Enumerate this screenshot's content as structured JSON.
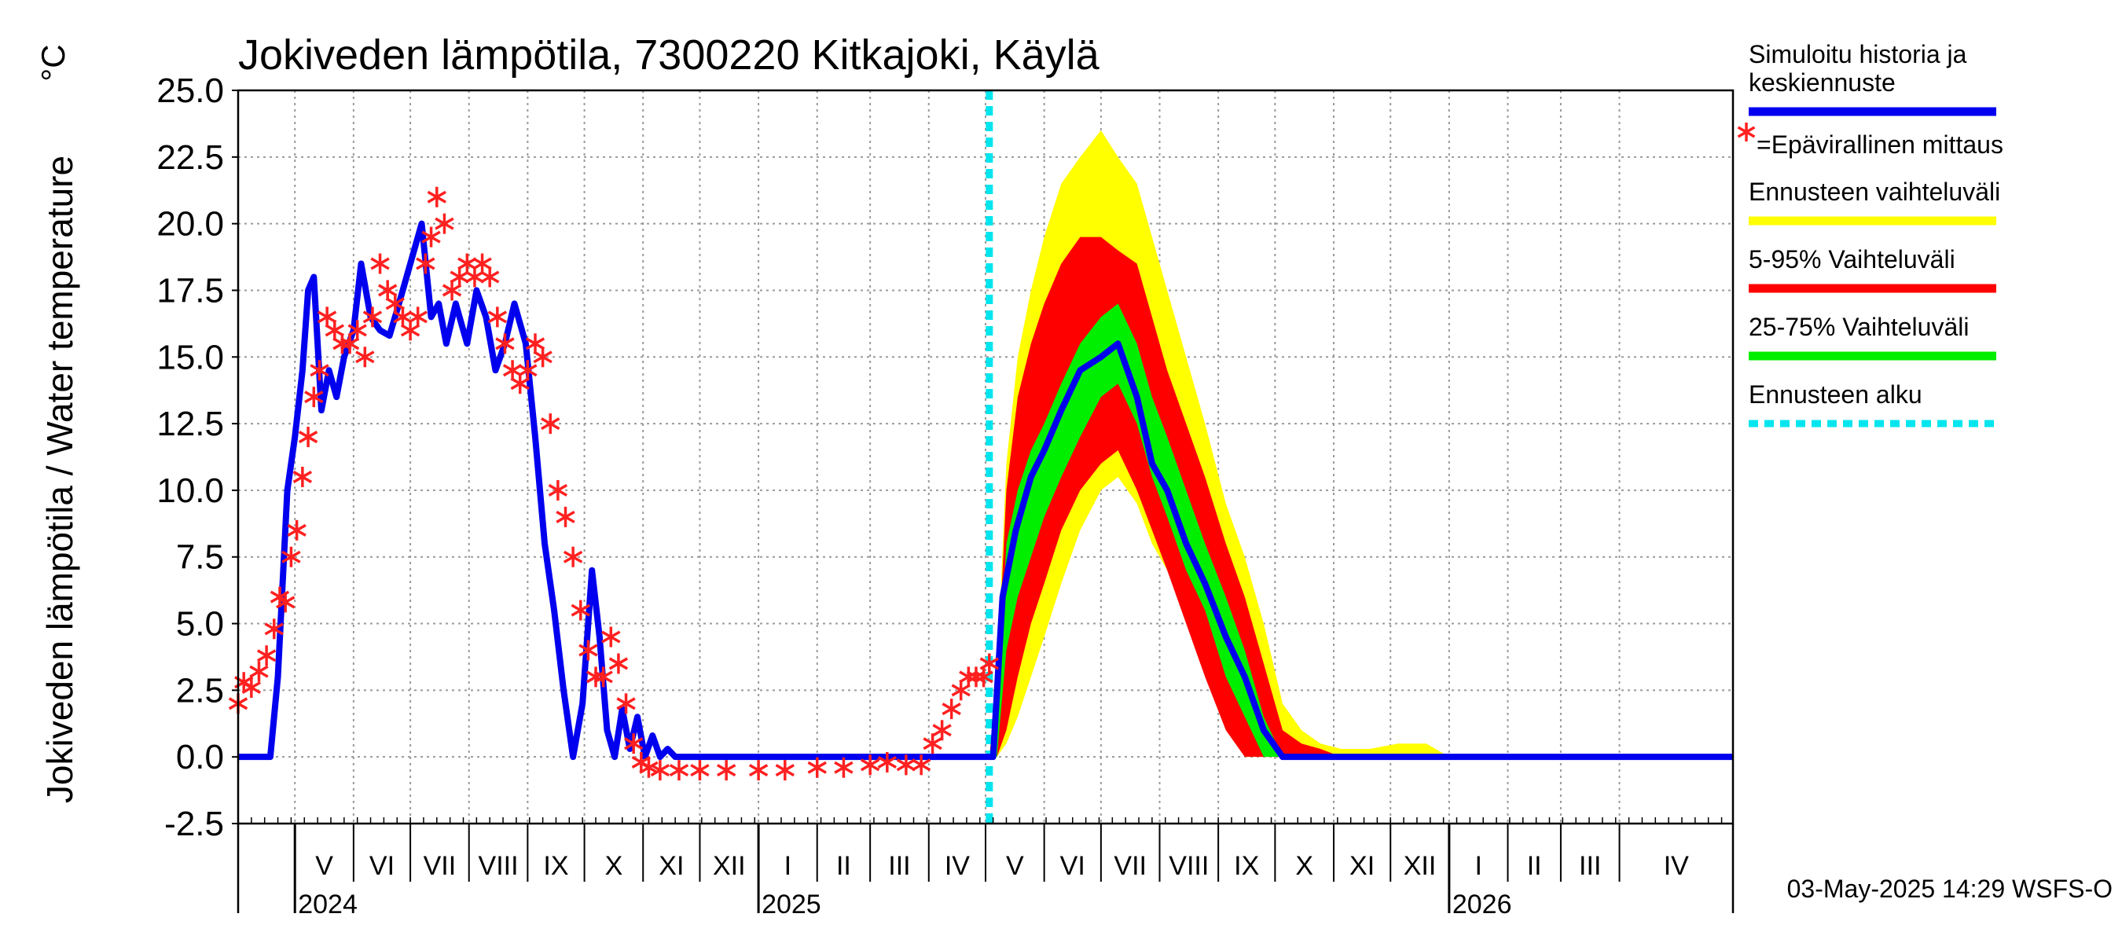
{
  "chart_data": {
    "type": "line",
    "title": "Jokiveden lämpötila, 7300220 Kitkajoki, Käylä",
    "ylabel": "Jokiveden lämpötila / Water temperature",
    "yunit": "°C",
    "ylim": [
      -2.5,
      25.0
    ],
    "yticks": [
      "25.0",
      "22.5",
      "20.0",
      "17.5",
      "15.0",
      "12.5",
      "10.0",
      "7.5",
      "5.0",
      "2.5",
      "0.0",
      "-2.5"
    ],
    "xlim": [
      "2024-04-01",
      "2026-05-31"
    ],
    "months": [
      {
        "label": "V",
        "start": "2024-05-01"
      },
      {
        "label": "VI",
        "start": "2024-06-01"
      },
      {
        "label": "VII",
        "start": "2024-07-01"
      },
      {
        "label": "VIII",
        "start": "2024-08-01"
      },
      {
        "label": "IX",
        "start": "2024-09-01"
      },
      {
        "label": "X",
        "start": "2024-10-01"
      },
      {
        "label": "XI",
        "start": "2024-11-01"
      },
      {
        "label": "XII",
        "start": "2024-12-01"
      },
      {
        "label": "I",
        "start": "2025-01-01"
      },
      {
        "label": "II",
        "start": "2025-02-01"
      },
      {
        "label": "III",
        "start": "2025-03-01"
      },
      {
        "label": "IV",
        "start": "2025-04-01"
      },
      {
        "label": "V",
        "start": "2025-05-01"
      },
      {
        "label": "VI",
        "start": "2025-06-01"
      },
      {
        "label": "VII",
        "start": "2025-07-01"
      },
      {
        "label": "VIII",
        "start": "2025-08-01"
      },
      {
        "label": "IX",
        "start": "2025-09-01"
      },
      {
        "label": "X",
        "start": "2025-10-01"
      },
      {
        "label": "XI",
        "start": "2025-11-01"
      },
      {
        "label": "XII",
        "start": "2025-12-01"
      },
      {
        "label": "I",
        "start": "2026-01-01"
      },
      {
        "label": "II",
        "start": "2026-02-01"
      },
      {
        "label": "III",
        "start": "2026-03-01"
      },
      {
        "label": "IV",
        "start": "2026-04-01"
      }
    ],
    "years": [
      {
        "label": "2024",
        "date": "2024-05-01"
      },
      {
        "label": "2025",
        "date": "2025-01-01"
      },
      {
        "label": "2026",
        "date": "2026-01-01"
      }
    ],
    "forecast_start": "2025-05-03",
    "colors": {
      "history": "#0000ee",
      "observation": "#ff2020",
      "range_full": "#ffff00",
      "range_5_95": "#ff0000",
      "range_25_75": "#00ee00",
      "forecast_start": "#00e5ee"
    },
    "series": [
      {
        "name": "Simuloitu historia ja keskiennuste",
        "kind": "line",
        "x": [
          "2024-04-01",
          "2024-04-18",
          "2024-04-22",
          "2024-04-27",
          "2024-05-01",
          "2024-05-05",
          "2024-05-08",
          "2024-05-11",
          "2024-05-15",
          "2024-05-19",
          "2024-05-23",
          "2024-05-27",
          "2024-06-01",
          "2024-06-05",
          "2024-06-10",
          "2024-06-15",
          "2024-06-20",
          "2024-06-25",
          "2024-07-01",
          "2024-07-07",
          "2024-07-12",
          "2024-07-16",
          "2024-07-20",
          "2024-07-25",
          "2024-07-31",
          "2024-08-05",
          "2024-08-10",
          "2024-08-15",
          "2024-08-20",
          "2024-08-25",
          "2024-08-31",
          "2024-09-05",
          "2024-09-10",
          "2024-09-15",
          "2024-09-20",
          "2024-09-25",
          "2024-09-30",
          "2024-10-05",
          "2024-10-09",
          "2024-10-13",
          "2024-10-17",
          "2024-10-21",
          "2024-10-25",
          "2024-10-29",
          "2024-11-02",
          "2024-11-06",
          "2024-11-10",
          "2024-11-14",
          "2024-11-18",
          "2024-11-25",
          "2024-12-05",
          "2025-05-03",
          "2025-05-05",
          "2025-05-10",
          "2025-05-17",
          "2025-05-25",
          "2025-06-01",
          "2025-06-10",
          "2025-06-20",
          "2025-07-01",
          "2025-07-10",
          "2025-07-20",
          "2025-07-28",
          "2025-08-05",
          "2025-08-15",
          "2025-08-25",
          "2025-09-05",
          "2025-09-15",
          "2025-09-25",
          "2025-10-05",
          "2025-10-10",
          "2026-05-31"
        ],
        "y": [
          0.0,
          0.0,
          3.0,
          10.0,
          12.0,
          14.5,
          17.5,
          18.0,
          13.0,
          14.5,
          13.5,
          15.0,
          16.0,
          18.5,
          16.5,
          16.0,
          15.8,
          17.0,
          18.5,
          20.0,
          16.5,
          17.0,
          15.5,
          17.0,
          15.5,
          17.5,
          16.5,
          14.5,
          15.5,
          17.0,
          15.5,
          12.0,
          8.0,
          5.5,
          2.5,
          0.0,
          2.0,
          7.0,
          4.5,
          1.0,
          0.0,
          1.8,
          0.3,
          1.5,
          0.0,
          0.8,
          0.0,
          0.3,
          0.0,
          0.0,
          0.0,
          0.0,
          0.0,
          6.0,
          8.5,
          10.5,
          11.5,
          13.0,
          14.5,
          15.0,
          15.5,
          13.5,
          11.0,
          10.0,
          8.0,
          6.5,
          4.5,
          3.0,
          1.0,
          0.0,
          0.0,
          0.0
        ]
      },
      {
        "name": "=Epävirallinen mittaus",
        "kind": "markers",
        "marker": "asterisk",
        "x": [
          "2024-04-01",
          "2024-04-04",
          "2024-04-08",
          "2024-04-12",
          "2024-04-16",
          "2024-04-20",
          "2024-04-23",
          "2024-04-26",
          "2024-04-29",
          "2024-05-02",
          "2024-05-05",
          "2024-05-08",
          "2024-05-11",
          "2024-05-14",
          "2024-05-18",
          "2024-05-22",
          "2024-05-26",
          "2024-05-30",
          "2024-06-03",
          "2024-06-07",
          "2024-06-11",
          "2024-06-15",
          "2024-06-19",
          "2024-06-23",
          "2024-06-27",
          "2024-07-01",
          "2024-07-05",
          "2024-07-09",
          "2024-07-12",
          "2024-07-15",
          "2024-07-19",
          "2024-07-23",
          "2024-07-27",
          "2024-07-31",
          "2024-08-04",
          "2024-08-08",
          "2024-08-12",
          "2024-08-16",
          "2024-08-20",
          "2024-08-24",
          "2024-08-28",
          "2024-09-01",
          "2024-09-05",
          "2024-09-09",
          "2024-09-13",
          "2024-09-17",
          "2024-09-21",
          "2024-09-25",
          "2024-09-29",
          "2024-10-03",
          "2024-10-07",
          "2024-10-11",
          "2024-10-15",
          "2024-10-19",
          "2024-10-23",
          "2024-10-27",
          "2024-10-31",
          "2024-11-04",
          "2024-11-10",
          "2024-11-20",
          "2024-12-01",
          "2024-12-15",
          "2025-01-01",
          "2025-01-15",
          "2025-02-01",
          "2025-02-15",
          "2025-03-01",
          "2025-03-10",
          "2025-03-20",
          "2025-03-28",
          "2025-04-03",
          "2025-04-08",
          "2025-04-13",
          "2025-04-18",
          "2025-04-22",
          "2025-04-26",
          "2025-04-30",
          "2025-05-03"
        ],
        "y": [
          2.0,
          2.8,
          2.6,
          3.2,
          3.8,
          4.8,
          6.0,
          5.8,
          7.5,
          8.5,
          10.5,
          12.0,
          13.5,
          14.5,
          16.5,
          16.0,
          15.5,
          15.5,
          16.0,
          15.0,
          16.5,
          18.5,
          17.5,
          17.0,
          16.5,
          16.0,
          16.5,
          18.5,
          19.5,
          21.0,
          20.0,
          17.5,
          18.0,
          18.5,
          18.0,
          18.5,
          18.0,
          16.5,
          15.5,
          14.5,
          14.0,
          14.5,
          15.5,
          15.0,
          12.5,
          10.0,
          9.0,
          7.5,
          5.5,
          4.0,
          3.0,
          3.0,
          4.5,
          3.5,
          2.0,
          0.5,
          -0.2,
          -0.4,
          -0.5,
          -0.5,
          -0.5,
          -0.5,
          -0.5,
          -0.5,
          -0.4,
          -0.4,
          -0.3,
          -0.2,
          -0.3,
          -0.3,
          0.5,
          1.0,
          1.8,
          2.5,
          3.0,
          3.0,
          3.0,
          3.5
        ]
      },
      {
        "name": "Ennusteen vaihteluväli",
        "kind": "band",
        "x": [
          "2025-05-03",
          "2025-05-07",
          "2025-05-12",
          "2025-05-18",
          "2025-05-25",
          "2025-06-01",
          "2025-06-10",
          "2025-06-20",
          "2025-07-01",
          "2025-07-10",
          "2025-07-20",
          "2025-07-28",
          "2025-08-05",
          "2025-08-15",
          "2025-08-25",
          "2025-09-05",
          "2025-09-15",
          "2025-09-25",
          "2025-10-05",
          "2025-10-15",
          "2025-10-25",
          "2025-11-05",
          "2025-11-20",
          "2025-12-05",
          "2025-12-20",
          "2026-01-01"
        ],
        "low": [
          0.0,
          0.0,
          0.5,
          1.5,
          3.0,
          4.5,
          6.5,
          8.5,
          10.0,
          10.5,
          9.5,
          8.0,
          7.0,
          5.5,
          3.5,
          1.5,
          0.0,
          0.0,
          0.0,
          0.0,
          0.0,
          0.0,
          0.0,
          0.0,
          0.0,
          0.0
        ],
        "high": [
          0.0,
          3.0,
          11.0,
          15.0,
          17.5,
          19.5,
          21.5,
          22.5,
          23.5,
          22.5,
          21.5,
          19.5,
          17.5,
          15.0,
          12.5,
          9.5,
          7.5,
          5.0,
          2.0,
          1.0,
          0.5,
          0.3,
          0.3,
          0.5,
          0.5,
          0.0
        ]
      },
      {
        "name": "5-95% Vaihteluväli",
        "kind": "band",
        "x": [
          "2025-05-03",
          "2025-05-07",
          "2025-05-12",
          "2025-05-18",
          "2025-05-25",
          "2025-06-01",
          "2025-06-10",
          "2025-06-20",
          "2025-07-01",
          "2025-07-10",
          "2025-07-20",
          "2025-07-28",
          "2025-08-05",
          "2025-08-15",
          "2025-08-25",
          "2025-09-05",
          "2025-09-15",
          "2025-09-25",
          "2025-10-05",
          "2025-10-15",
          "2025-10-25",
          "2025-11-05",
          "2025-11-15"
        ],
        "low": [
          0.0,
          0.0,
          1.0,
          3.0,
          5.0,
          6.5,
          8.5,
          10.0,
          11.0,
          11.5,
          10.0,
          8.5,
          7.0,
          5.0,
          3.0,
          1.0,
          0.0,
          0.0,
          0.0,
          0.0,
          0.0,
          0.0,
          0.0
        ],
        "high": [
          0.0,
          2.5,
          10.0,
          13.5,
          15.5,
          17.0,
          18.5,
          19.5,
          19.5,
          19.0,
          18.5,
          16.5,
          14.5,
          12.5,
          10.5,
          8.0,
          6.0,
          3.5,
          1.0,
          0.5,
          0.3,
          0.0,
          0.0
        ]
      },
      {
        "name": "25-75% Vaihteluväli",
        "kind": "band",
        "x": [
          "2025-05-03",
          "2025-05-07",
          "2025-05-12",
          "2025-05-18",
          "2025-05-25",
          "2025-06-01",
          "2025-06-10",
          "2025-06-20",
          "2025-07-01",
          "2025-07-10",
          "2025-07-20",
          "2025-07-28",
          "2025-08-05",
          "2025-08-15",
          "2025-08-25",
          "2025-09-05",
          "2025-09-15",
          "2025-09-25",
          "2025-10-05",
          "2025-10-10"
        ],
        "low": [
          0.0,
          0.0,
          4.0,
          6.0,
          7.5,
          9.0,
          10.5,
          12.0,
          13.5,
          14.0,
          12.5,
          10.5,
          9.0,
          7.0,
          5.5,
          3.0,
          1.5,
          0.0,
          0.0,
          0.0
        ],
        "high": [
          0.0,
          1.0,
          8.0,
          10.0,
          11.5,
          12.5,
          14.0,
          15.5,
          16.5,
          17.0,
          15.5,
          13.5,
          12.0,
          10.0,
          8.0,
          6.0,
          4.0,
          1.5,
          0.0,
          0.0
        ]
      },
      {
        "name": "Ennusteen alku",
        "kind": "vline",
        "x": [
          "2025-05-03"
        ]
      }
    ]
  },
  "footer": "03-May-2025 14:29 WSFS-O",
  "legend_items": [
    {
      "lines": [
        "Simuloitu historia ja",
        "keskiennuste"
      ],
      "swatch": "line",
      "color": "#0000ee"
    },
    {
      "lines": [
        "=Epävirallinen mittaus"
      ],
      "swatch": "asterisk",
      "color": "#ff2020"
    },
    {
      "lines": [
        "Ennusteen vaihteluväli"
      ],
      "swatch": "line",
      "color": "#ffff00"
    },
    {
      "lines": [
        "5-95% Vaihteluväli"
      ],
      "swatch": "line",
      "color": "#ff0000"
    },
    {
      "lines": [
        "25-75% Vaihteluväli"
      ],
      "swatch": "line",
      "color": "#00ee00"
    },
    {
      "lines": [
        "Ennusteen alku"
      ],
      "swatch": "dashed",
      "color": "#00e5ee"
    }
  ]
}
